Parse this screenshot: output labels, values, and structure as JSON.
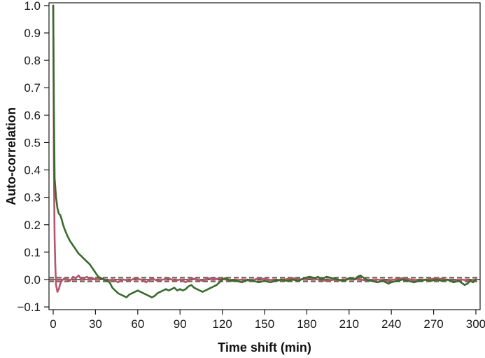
{
  "chart_data": {
    "type": "line",
    "title": "",
    "xlabel": "Time shift (min)",
    "ylabel": "Auto-correlation",
    "xlim": [
      -3,
      303
    ],
    "ylim": [
      -0.11,
      1.01
    ],
    "x_ticks": [
      0,
      30,
      60,
      90,
      120,
      150,
      180,
      210,
      240,
      270,
      300
    ],
    "x_tick_labels": [
      "0",
      "30",
      "60",
      "90",
      "120",
      "150",
      "180",
      "210",
      "240",
      "270",
      "300"
    ],
    "y_ticks": [
      1.0,
      0.9,
      0.8,
      0.7,
      0.6,
      0.5,
      0.4,
      0.3,
      0.2,
      0.1,
      0.0,
      -0.1
    ],
    "y_tick_labels": [
      "1.0",
      "0.9",
      "0.8",
      "0.7",
      "0.6",
      "0.5",
      "0.4",
      "0.3",
      "0.2",
      "0.1",
      "0.0",
      "−0.1"
    ],
    "grid": false,
    "legend": "none",
    "series": [
      {
        "color": "#3a6b2e",
        "points": [
          [
            0,
            1.0
          ],
          [
            0.5,
            0.62
          ],
          [
            1,
            0.37
          ],
          [
            2,
            0.3
          ],
          [
            3,
            0.26
          ],
          [
            4,
            0.24
          ],
          [
            5,
            0.235
          ],
          [
            6,
            0.22
          ],
          [
            7,
            0.2
          ],
          [
            8,
            0.185
          ],
          [
            10,
            0.16
          ],
          [
            12,
            0.14
          ],
          [
            14,
            0.125
          ],
          [
            16,
            0.11
          ],
          [
            18,
            0.095
          ],
          [
            20,
            0.085
          ],
          [
            22,
            0.075
          ],
          [
            24,
            0.065
          ],
          [
            26,
            0.055
          ],
          [
            28,
            0.04
          ],
          [
            30,
            0.025
          ],
          [
            32,
            0.01
          ],
          [
            34,
            0.005
          ],
          [
            36,
            0.0
          ],
          [
            38,
            -0.005
          ],
          [
            40,
            -0.01
          ],
          [
            42,
            -0.03
          ],
          [
            44,
            -0.04
          ],
          [
            46,
            -0.05
          ],
          [
            48,
            -0.055
          ],
          [
            50,
            -0.06
          ],
          [
            52,
            -0.065
          ],
          [
            54,
            -0.055
          ],
          [
            56,
            -0.05
          ],
          [
            58,
            -0.045
          ],
          [
            60,
            -0.04
          ],
          [
            62,
            -0.045
          ],
          [
            64,
            -0.05
          ],
          [
            66,
            -0.055
          ],
          [
            68,
            -0.06
          ],
          [
            70,
            -0.065
          ],
          [
            72,
            -0.06
          ],
          [
            74,
            -0.05
          ],
          [
            76,
            -0.045
          ],
          [
            78,
            -0.04
          ],
          [
            80,
            -0.035
          ],
          [
            82,
            -0.04
          ],
          [
            84,
            -0.035
          ],
          [
            86,
            -0.03
          ],
          [
            88,
            -0.04
          ],
          [
            90,
            -0.035
          ],
          [
            92,
            -0.04
          ],
          [
            94,
            -0.035
          ],
          [
            96,
            -0.025
          ],
          [
            98,
            -0.02
          ],
          [
            100,
            -0.03
          ],
          [
            102,
            -0.035
          ],
          [
            104,
            -0.04
          ],
          [
            106,
            -0.045
          ],
          [
            108,
            -0.04
          ],
          [
            110,
            -0.035
          ],
          [
            112,
            -0.03
          ],
          [
            114,
            -0.025
          ],
          [
            116,
            -0.02
          ],
          [
            118,
            -0.01
          ],
          [
            120,
            0.0
          ],
          [
            122,
            0.005
          ],
          [
            124,
            0.0
          ],
          [
            126,
            -0.005
          ],
          [
            130,
            -0.005
          ],
          [
            134,
            -0.01
          ],
          [
            138,
            0.0
          ],
          [
            142,
            -0.005
          ],
          [
            146,
            -0.01
          ],
          [
            150,
            -0.005
          ],
          [
            154,
            -0.01
          ],
          [
            158,
            -0.005
          ],
          [
            162,
            0.0
          ],
          [
            166,
            -0.005
          ],
          [
            170,
            0.0
          ],
          [
            174,
            -0.005
          ],
          [
            178,
            0.005
          ],
          [
            182,
            0.01
          ],
          [
            186,
            0.005
          ],
          [
            188,
            0.01
          ],
          [
            190,
            0.0
          ],
          [
            194,
            0.01
          ],
          [
            198,
            0.005
          ],
          [
            202,
            0.0
          ],
          [
            206,
            -0.005
          ],
          [
            210,
            0.005
          ],
          [
            214,
            0.0
          ],
          [
            216,
            0.01
          ],
          [
            218,
            0.015
          ],
          [
            222,
            0.0
          ],
          [
            226,
            -0.005
          ],
          [
            230,
            -0.01
          ],
          [
            234,
            -0.005
          ],
          [
            238,
            -0.015
          ],
          [
            240,
            -0.01
          ],
          [
            244,
            -0.005
          ],
          [
            248,
            0.0
          ],
          [
            252,
            -0.005
          ],
          [
            256,
            -0.01
          ],
          [
            260,
            -0.005
          ],
          [
            264,
            0.0
          ],
          [
            268,
            -0.005
          ],
          [
            272,
            0.0
          ],
          [
            276,
            -0.005
          ],
          [
            280,
            0.0
          ],
          [
            284,
            -0.01
          ],
          [
            288,
            -0.005
          ],
          [
            292,
            -0.02
          ],
          [
            294,
            -0.015
          ],
          [
            296,
            -0.005
          ],
          [
            298,
            -0.01
          ],
          [
            300,
            0.0
          ]
        ]
      },
      {
        "color": "#b5566e",
        "points": [
          [
            0,
            1.0
          ],
          [
            0.5,
            0.4
          ],
          [
            1,
            0.15
          ],
          [
            1.5,
            0.05
          ],
          [
            2,
            -0.02
          ],
          [
            3,
            -0.045
          ],
          [
            4,
            -0.035
          ],
          [
            5,
            -0.015
          ],
          [
            6,
            -0.005
          ],
          [
            8,
            0.005
          ],
          [
            10,
            0.0
          ],
          [
            12,
            -0.005
          ],
          [
            14,
            0.01
          ],
          [
            16,
            0.005
          ],
          [
            18,
            0.015
          ],
          [
            20,
            0.0
          ],
          [
            22,
            0.005
          ],
          [
            24,
            0.01
          ],
          [
            26,
            0.0
          ],
          [
            28,
            0.005
          ],
          [
            30,
            0.0
          ],
          [
            34,
            0.005
          ],
          [
            38,
            -0.005
          ],
          [
            42,
            0.0
          ],
          [
            46,
            -0.01
          ],
          [
            50,
            0.0
          ],
          [
            54,
            -0.005
          ],
          [
            58,
            0.005
          ],
          [
            62,
            0.0
          ],
          [
            66,
            -0.01
          ],
          [
            70,
            0.005
          ],
          [
            74,
            -0.005
          ],
          [
            78,
            0.0
          ],
          [
            82,
            0.005
          ],
          [
            86,
            -0.005
          ],
          [
            90,
            0.0
          ],
          [
            94,
            -0.01
          ],
          [
            98,
            0.005
          ],
          [
            102,
            0.0
          ],
          [
            106,
            -0.005
          ],
          [
            110,
            0.005
          ],
          [
            114,
            0.0
          ],
          [
            118,
            0.005
          ],
          [
            122,
            0.0
          ],
          [
            128,
            -0.005
          ],
          [
            134,
            0.0
          ],
          [
            140,
            -0.005
          ],
          [
            146,
            0.005
          ],
          [
            152,
            0.0
          ],
          [
            158,
            -0.005
          ],
          [
            164,
            0.0
          ],
          [
            170,
            0.005
          ],
          [
            176,
            0.0
          ],
          [
            182,
            0.005
          ],
          [
            188,
            0.0
          ],
          [
            194,
            -0.005
          ],
          [
            200,
            0.0
          ],
          [
            206,
            -0.005
          ],
          [
            212,
            0.005
          ],
          [
            218,
            0.0
          ],
          [
            224,
            -0.005
          ],
          [
            230,
            0.0
          ],
          [
            236,
            -0.005
          ],
          [
            242,
            0.0
          ],
          [
            248,
            0.005
          ],
          [
            254,
            0.0
          ],
          [
            260,
            -0.005
          ],
          [
            266,
            0.0
          ],
          [
            272,
            0.005
          ],
          [
            278,
            0.0
          ],
          [
            284,
            -0.005
          ],
          [
            290,
            0.0
          ],
          [
            296,
            -0.005
          ],
          [
            300,
            0.0
          ]
        ]
      }
    ],
    "reference_lines": [
      {
        "y": 0.0,
        "color": "#1a1a1a",
        "style": "solid"
      },
      {
        "y": 0.008,
        "color": "#3a6b2e",
        "style": "dashed"
      },
      {
        "y": -0.008,
        "color": "#3a6b2e",
        "style": "dashed"
      },
      {
        "y": 0.005,
        "color": "#b5566e",
        "style": "dashed"
      },
      {
        "y": -0.005,
        "color": "#b5566e",
        "style": "dashed"
      }
    ]
  }
}
